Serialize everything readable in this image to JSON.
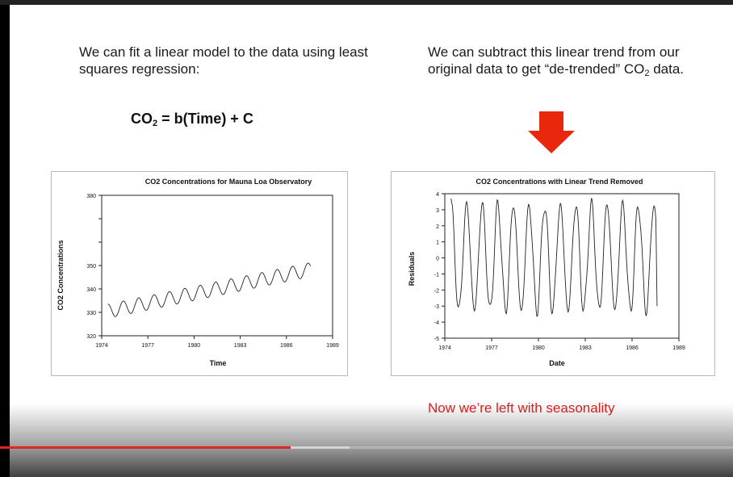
{
  "slide": {
    "left_text": "We can fit a linear model to the data using least squares regression:",
    "right_text_before": "We can subtract this linear trend from our original data to get “de-trended” CO",
    "right_text_sub": "2",
    "right_text_after": " data.",
    "formula_prefix": "CO",
    "formula_sub": "2",
    "formula_rest": " = b(Time) + C",
    "conclusion": "Now we’re left with seasonality",
    "arrow_icon": "down-arrow-icon",
    "accent_color": "#e02020"
  },
  "player": {
    "progress_played": 0.397,
    "progress_buffered": 0.477,
    "progress_color": "#e52222"
  },
  "chart_data": [
    {
      "type": "line",
      "title": "CO2 Concentrations for Mauna Loa Observatory",
      "xlabel": "Time",
      "ylabel": "CO2 Concentrations",
      "xlim": [
        1974,
        1989
      ],
      "ylim": [
        320,
        380
      ],
      "xticks": [
        1974,
        1977,
        1980,
        1983,
        1986,
        1989
      ],
      "yticks": [
        320,
        330,
        340,
        350,
        360,
        370,
        380
      ],
      "ytick_labels": [
        "320",
        "330",
        "340",
        "350",
        "",
        "",
        "380"
      ],
      "series": [
        {
          "x_start": 1974.4,
          "x_end": 1987.6,
          "trend_start": 330.5,
          "trend_slope_per_year": 1.35,
          "seasonal_amplitude": 3.0,
          "cycle_years": 1
        }
      ],
      "grid": false
    },
    {
      "type": "line",
      "title": "CO2 Concentrations with Linear Trend Removed",
      "xlabel": "Date",
      "ylabel": "Residuals",
      "xlim": [
        1974,
        1989
      ],
      "ylim": [
        -5,
        4
      ],
      "xticks": [
        1974,
        1977,
        1980,
        1983,
        1986,
        1989
      ],
      "yticks": [
        -5,
        -4,
        -3,
        -2,
        -1,
        0,
        1,
        2,
        3,
        4
      ],
      "series": [
        {
          "x_start": 1974.4,
          "x_end": 1987.6,
          "seasonal_amplitude": 3.3,
          "cycle_years": 1,
          "start_value": 3.7,
          "end_value": -3.0
        }
      ],
      "grid": false
    }
  ]
}
